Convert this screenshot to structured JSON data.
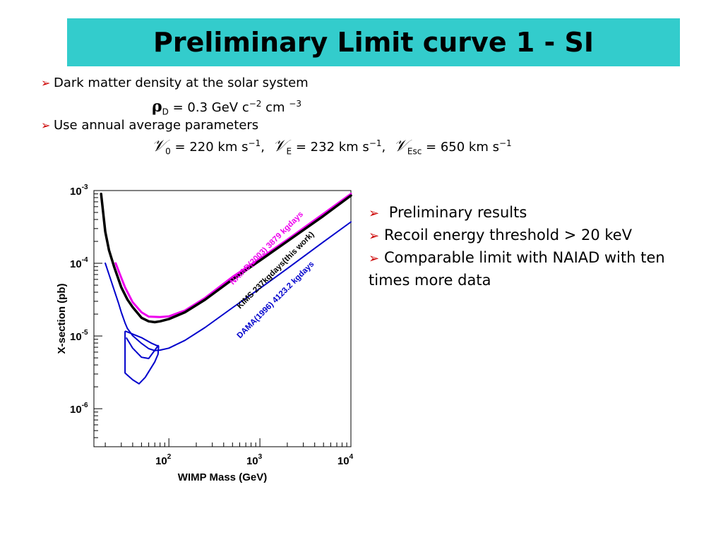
{
  "slide": {
    "title": "Preliminary Limit curve 1 - SI",
    "bullet_marker": "➢",
    "bullet1": "Dark matter density at the solar system",
    "rho": {
      "symbol": "ρ",
      "sub": "D",
      "text": " = 0.3 GeV c",
      "exp1": "−2",
      "unit2": " cm ",
      "exp2": "−3"
    },
    "bullet2": "Use annual average parameters",
    "velocities": {
      "v0": {
        "symbol": "𝒱",
        "sub": "0",
        "text": " = 220 km s",
        "exp": "−1",
        "sep": ","
      },
      "vE": {
        "symbol": "𝒱",
        "sub": "E",
        "text": " = 232 km s",
        "exp": "−1",
        "sep": ","
      },
      "vEsc": {
        "symbol": "𝒱",
        "sub": "Esc",
        "text": " = 650 km s",
        "exp": "−1"
      }
    },
    "right_bullets": [
      "Preliminary results",
      "Recoil energy threshold > 20 keV",
      "Comparable limit with NAIAD with ten times more data"
    ]
  },
  "colors": {
    "title_bg": "#33cccc",
    "bullet": "#cc0000",
    "naiad": "#ee00ee",
    "kims": "#000000",
    "dama": "#0000cc"
  },
  "chart_data": {
    "type": "line",
    "xscale": "log",
    "yscale": "log",
    "xlabel": "WIMP Mass (GeV)",
    "ylabel": "X-section (pb)",
    "xlim": [
      15,
      10000
    ],
    "ylim": [
      3e-07,
      0.001
    ],
    "x_tick_labels": [
      {
        "value": 100,
        "base": "10",
        "exp": "2"
      },
      {
        "value": 1000,
        "base": "10",
        "exp": "3"
      },
      {
        "value": 10000,
        "base": "10",
        "exp": "4"
      }
    ],
    "y_tick_labels": [
      {
        "value": 0.001,
        "base": "10",
        "exp": "-3"
      },
      {
        "value": 0.0001,
        "base": "10",
        "exp": "-4"
      },
      {
        "value": 1e-05,
        "base": "10",
        "exp": "-5"
      },
      {
        "value": 1e-06,
        "base": "10",
        "exp": "-6"
      }
    ],
    "series": [
      {
        "name": "NAIAD(2003) 3879 kgdays",
        "key": "naiad",
        "x": [
          26,
          29,
          33,
          40,
          50,
          60,
          80,
          100,
          150,
          250,
          500,
          1000,
          2000,
          5000,
          10000
        ],
        "y": [
          0.0001,
          7.01e-05,
          4.66e-05,
          2.91e-05,
          2.12e-05,
          1.85e-05,
          1.82e-05,
          1.86e-05,
          2.24e-05,
          3.34e-05,
          6.49e-05,
          0.000116,
          0.000211,
          0.000481,
          0.000901
        ]
      },
      {
        "name": "KIMS 237kgdays(this work)",
        "key": "kims",
        "x": [
          18,
          20,
          22,
          25,
          30,
          35,
          40,
          50,
          60,
          70,
          80,
          100,
          150,
          250,
          500,
          1000,
          2000,
          5000,
          10000
        ],
        "y": [
          0.000901,
          0.000271,
          0.000151,
          8.98e-05,
          4.66e-05,
          3.18e-05,
          2.49e-05,
          1.78e-05,
          1.59e-05,
          1.55e-05,
          1.59e-05,
          1.71e-05,
          2.12e-05,
          3.16e-05,
          5.98e-05,
          0.000109,
          0.0002,
          0.000448,
          0.000853
        ]
      },
      {
        "name": "DAMA(1996) 4123.2 kgdays",
        "key": "dama",
        "x": [
          20,
          22,
          25,
          28,
          30,
          33,
          35,
          40,
          50,
          60,
          70,
          80,
          100,
          150,
          250,
          500,
          1000,
          2000,
          5000,
          10000
        ],
        "y": [
          0.0001,
          7.01e-05,
          4.31e-05,
          2.82e-05,
          2.12e-05,
          1.51e-05,
          1.27e-05,
          1.01e-05,
          7.9e-06,
          6.7e-06,
          6.3e-06,
          6.4e-06,
          6.8e-06,
          8.7e-06,
          1.31e-05,
          2.45e-05,
          4.51e-05,
          8.45e-05,
          0.000197,
          0.00037
        ]
      }
    ],
    "dama_region": {
      "x": [
        33,
        38,
        50,
        65,
        77,
        76,
        70,
        55,
        47,
        40,
        35,
        33,
        33
      ],
      "y": [
        1.17e-05,
        1.09e-05,
        9.5e-06,
        7.9e-06,
        7.2e-06,
        5.6e-06,
        4.4e-06,
        2.7e-06,
        2.2e-06,
        2.5e-06,
        2.9e-06,
        3.1e-06,
        1.17e-05
      ]
    },
    "dama_region_inner": {
      "x": [
        34,
        40,
        50,
        60,
        77
      ],
      "y": [
        9.5e-06,
        6.8e-06,
        5.1e-06,
        4.9e-06,
        7.5e-06
      ]
    }
  }
}
